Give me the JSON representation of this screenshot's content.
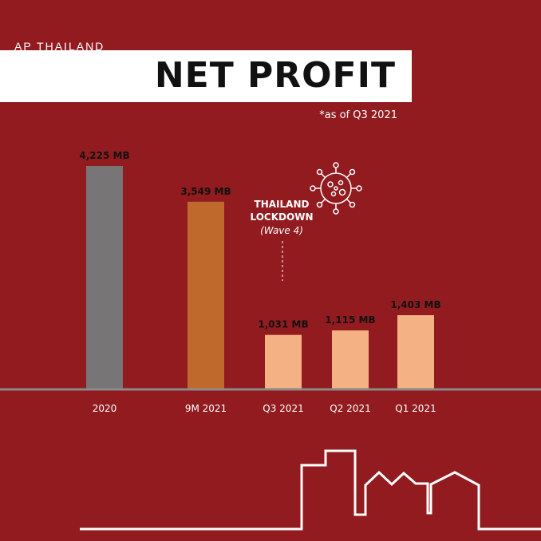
{
  "header": {
    "brand": "AP THAILAND",
    "title": "NET PROFIT",
    "note": "*as of Q3 2021"
  },
  "annotation": {
    "title": "THAILAND LOCKDOWN",
    "subtitle": "(Wave 4)",
    "icon": "virus-icon",
    "target_category": "Q3 2021"
  },
  "colors": {
    "background": "#921b1f",
    "baseline": "#8a8a8a",
    "text": "#ffffff"
  },
  "chart_data": {
    "type": "bar",
    "title": "NET PROFIT",
    "unit": "MB",
    "categories": [
      "2020",
      "9M 2021",
      "Q3 2021",
      "Q2 2021",
      "Q1 2021"
    ],
    "values": [
      4225,
      3549,
      1031,
      1115,
      1403
    ],
    "data_labels": [
      "4,225 MB",
      "3,549 MB",
      "1,031 MB",
      "1,115 MB",
      "1,403 MB"
    ],
    "bar_colors": [
      "#777575",
      "#bf6a2c",
      "#f4b183",
      "#f4b183",
      "#f4b183"
    ],
    "ylim": [
      0,
      4600
    ],
    "grid": false,
    "legend": "none"
  }
}
